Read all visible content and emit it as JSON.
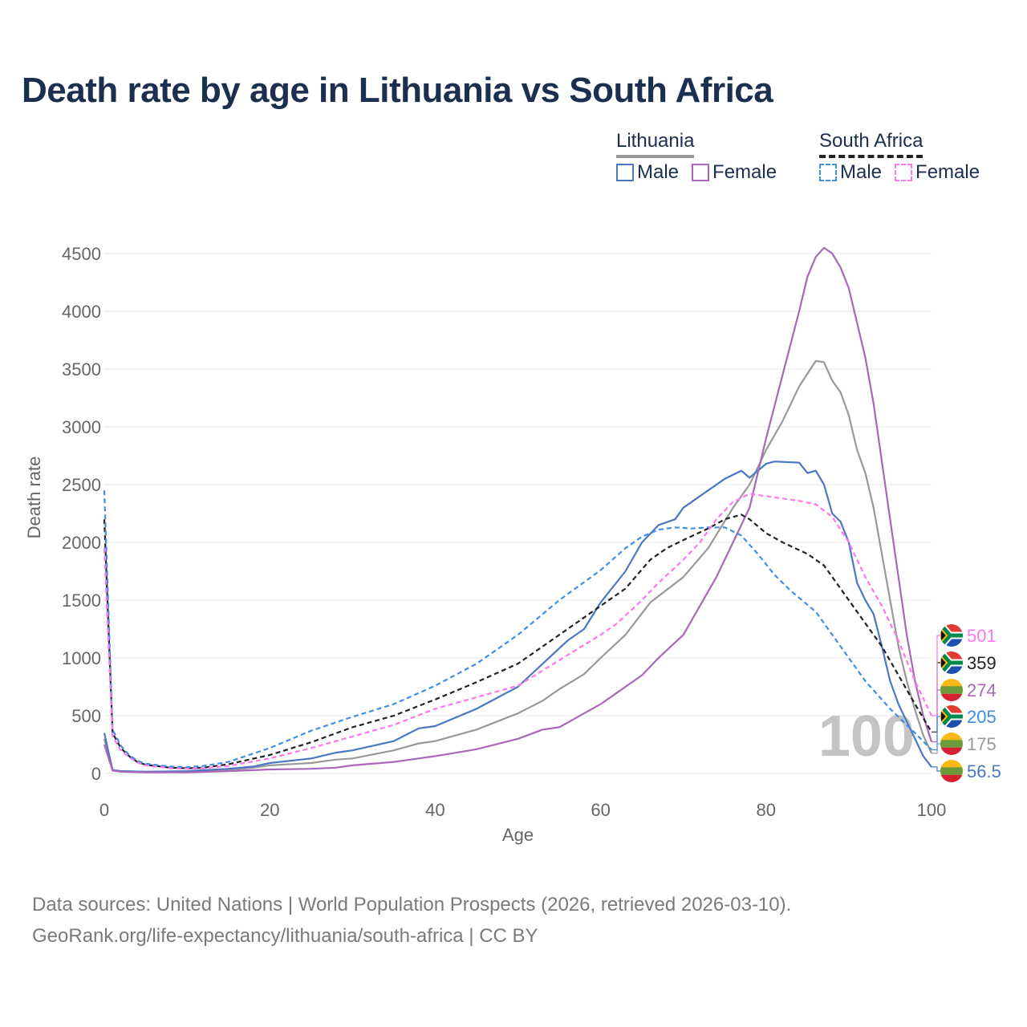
{
  "title": "Death rate by age in Lithuania vs South Africa",
  "legend": {
    "lithuania_label": "Lithuania",
    "south_africa_label": "South Africa",
    "male_label": "Male",
    "female_label": "Female"
  },
  "colors": {
    "lt_male": "#4a78c2",
    "lt_female": "#aa66bb",
    "lt_total": "#999999",
    "za_male": "#3d8fe8",
    "za_female": "#ff77ee",
    "za_total": "#222222",
    "grid": "#e6e6e6",
    "watermark": "#c4c4c4"
  },
  "footer": {
    "line1": "Data sources: United Nations | World Population Prospects (2026, retrieved 2026-03-10).",
    "line2": "GeoRank.org/life-expectancy/lithuania/south-africa | CC BY"
  },
  "chart_data": {
    "type": "line",
    "title": "Death rate by age in Lithuania vs South Africa",
    "xlabel": "Age",
    "ylabel": "Death rate",
    "xlim": [
      0,
      100
    ],
    "ylim": [
      0,
      4500
    ],
    "xticks": [
      "0",
      "20",
      "40",
      "60",
      "80",
      "100"
    ],
    "yticks": [
      "0",
      "500",
      "1000",
      "1500",
      "2000",
      "2500",
      "3000",
      "3500",
      "4000",
      "4500"
    ],
    "watermark": "100",
    "series": [
      {
        "id": "lt_total",
        "name": "Lithuania Total",
        "country": "Lithuania",
        "dashed": false,
        "end_label": "175",
        "points": [
          [
            0,
            300
          ],
          [
            1,
            30
          ],
          [
            2,
            20
          ],
          [
            5,
            15
          ],
          [
            10,
            15
          ],
          [
            15,
            30
          ],
          [
            18,
            50
          ],
          [
            20,
            70
          ],
          [
            25,
            90
          ],
          [
            28,
            120
          ],
          [
            30,
            130
          ],
          [
            35,
            200
          ],
          [
            38,
            260
          ],
          [
            40,
            280
          ],
          [
            45,
            380
          ],
          [
            50,
            520
          ],
          [
            53,
            630
          ],
          [
            55,
            730
          ],
          [
            58,
            860
          ],
          [
            60,
            1000
          ],
          [
            63,
            1200
          ],
          [
            66,
            1480
          ],
          [
            70,
            1700
          ],
          [
            73,
            1950
          ],
          [
            76,
            2300
          ],
          [
            78,
            2500
          ],
          [
            80,
            2800
          ],
          [
            82,
            3050
          ],
          [
            84,
            3350
          ],
          [
            86,
            3570
          ],
          [
            87,
            3560
          ],
          [
            88,
            3400
          ],
          [
            89,
            3300
          ],
          [
            90,
            3100
          ],
          [
            91,
            2800
          ],
          [
            92,
            2600
          ],
          [
            93,
            2300
          ],
          [
            94,
            1900
          ],
          [
            95,
            1500
          ],
          [
            96,
            1100
          ],
          [
            97,
            800
          ],
          [
            98,
            550
          ],
          [
            99,
            330
          ],
          [
            100,
            175
          ]
        ]
      },
      {
        "id": "lt_male",
        "name": "Lithuania Male",
        "country": "Lithuania",
        "dashed": false,
        "end_label": "56.5",
        "points": [
          [
            0,
            350
          ],
          [
            1,
            30
          ],
          [
            2,
            20
          ],
          [
            5,
            15
          ],
          [
            10,
            20
          ],
          [
            15,
            40
          ],
          [
            18,
            60
          ],
          [
            20,
            90
          ],
          [
            25,
            130
          ],
          [
            28,
            180
          ],
          [
            30,
            200
          ],
          [
            35,
            280
          ],
          [
            38,
            390
          ],
          [
            40,
            410
          ],
          [
            45,
            560
          ],
          [
            50,
            750
          ],
          [
            53,
            950
          ],
          [
            56,
            1150
          ],
          [
            58,
            1250
          ],
          [
            60,
            1480
          ],
          [
            63,
            1750
          ],
          [
            65,
            2000
          ],
          [
            67,
            2150
          ],
          [
            69,
            2200
          ],
          [
            70,
            2300
          ],
          [
            73,
            2450
          ],
          [
            75,
            2550
          ],
          [
            77,
            2620
          ],
          [
            78,
            2560
          ],
          [
            80,
            2680
          ],
          [
            81,
            2700
          ],
          [
            84,
            2690
          ],
          [
            85,
            2600
          ],
          [
            86,
            2620
          ],
          [
            87,
            2500
          ],
          [
            88,
            2250
          ],
          [
            89,
            2180
          ],
          [
            90,
            2000
          ],
          [
            91,
            1650
          ],
          [
            92,
            1500
          ],
          [
            93,
            1380
          ],
          [
            94,
            1100
          ],
          [
            95,
            800
          ],
          [
            96,
            600
          ],
          [
            97,
            450
          ],
          [
            98,
            300
          ],
          [
            99,
            150
          ],
          [
            100,
            56.5
          ]
        ]
      },
      {
        "id": "lt_female",
        "name": "Lithuania Female",
        "country": "Lithuania",
        "dashed": false,
        "end_label": "274",
        "points": [
          [
            0,
            250
          ],
          [
            1,
            25
          ],
          [
            2,
            15
          ],
          [
            5,
            10
          ],
          [
            10,
            10
          ],
          [
            15,
            20
          ],
          [
            20,
            35
          ],
          [
            25,
            40
          ],
          [
            28,
            50
          ],
          [
            30,
            70
          ],
          [
            35,
            100
          ],
          [
            38,
            130
          ],
          [
            40,
            150
          ],
          [
            45,
            210
          ],
          [
            50,
            300
          ],
          [
            53,
            380
          ],
          [
            55,
            400
          ],
          [
            58,
            520
          ],
          [
            60,
            600
          ],
          [
            63,
            750
          ],
          [
            65,
            850
          ],
          [
            67,
            1000
          ],
          [
            70,
            1200
          ],
          [
            72,
            1450
          ],
          [
            74,
            1700
          ],
          [
            76,
            2000
          ],
          [
            78,
            2300
          ],
          [
            80,
            2900
          ],
          [
            82,
            3450
          ],
          [
            84,
            4000
          ],
          [
            85,
            4300
          ],
          [
            86,
            4470
          ],
          [
            87,
            4550
          ],
          [
            88,
            4500
          ],
          [
            89,
            4380
          ],
          [
            90,
            4200
          ],
          [
            91,
            3900
          ],
          [
            92,
            3600
          ],
          [
            93,
            3200
          ],
          [
            94,
            2700
          ],
          [
            95,
            2200
          ],
          [
            96,
            1700
          ],
          [
            97,
            1200
          ],
          [
            98,
            800
          ],
          [
            99,
            500
          ],
          [
            100,
            274
          ]
        ]
      },
      {
        "id": "za_total",
        "name": "South Africa Total",
        "country": "South Africa",
        "dashed": true,
        "end_label": "359",
        "points": [
          [
            0,
            2200
          ],
          [
            1,
            350
          ],
          [
            2,
            220
          ],
          [
            3,
            150
          ],
          [
            4,
            100
          ],
          [
            5,
            75
          ],
          [
            8,
            50
          ],
          [
            10,
            45
          ],
          [
            12,
            50
          ],
          [
            15,
            80
          ],
          [
            20,
            160
          ],
          [
            25,
            270
          ],
          [
            30,
            400
          ],
          [
            35,
            500
          ],
          [
            40,
            640
          ],
          [
            45,
            790
          ],
          [
            50,
            950
          ],
          [
            55,
            1200
          ],
          [
            60,
            1450
          ],
          [
            63,
            1600
          ],
          [
            66,
            1850
          ],
          [
            68,
            1950
          ],
          [
            70,
            2020
          ],
          [
            73,
            2120
          ],
          [
            75,
            2200
          ],
          [
            77,
            2240
          ],
          [
            78,
            2200
          ],
          [
            80,
            2080
          ],
          [
            82,
            2000
          ],
          [
            85,
            1900
          ],
          [
            87,
            1800
          ],
          [
            88,
            1700
          ],
          [
            90,
            1500
          ],
          [
            92,
            1300
          ],
          [
            94,
            1100
          ],
          [
            96,
            850
          ],
          [
            98,
            600
          ],
          [
            100,
            359
          ]
        ]
      },
      {
        "id": "za_male",
        "name": "South Africa Male",
        "country": "South Africa",
        "dashed": true,
        "end_label": "205",
        "points": [
          [
            0,
            2450
          ],
          [
            1,
            380
          ],
          [
            2,
            240
          ],
          [
            3,
            160
          ],
          [
            4,
            110
          ],
          [
            5,
            85
          ],
          [
            8,
            60
          ],
          [
            10,
            55
          ],
          [
            12,
            65
          ],
          [
            15,
            100
          ],
          [
            20,
            220
          ],
          [
            25,
            370
          ],
          [
            30,
            490
          ],
          [
            35,
            600
          ],
          [
            40,
            760
          ],
          [
            45,
            950
          ],
          [
            50,
            1200
          ],
          [
            55,
            1500
          ],
          [
            60,
            1760
          ],
          [
            63,
            1950
          ],
          [
            65,
            2050
          ],
          [
            67,
            2110
          ],
          [
            69,
            2130
          ],
          [
            71,
            2120
          ],
          [
            73,
            2130
          ],
          [
            75,
            2130
          ],
          [
            77,
            2060
          ],
          [
            79,
            1900
          ],
          [
            81,
            1720
          ],
          [
            83,
            1580
          ],
          [
            86,
            1400
          ],
          [
            88,
            1200
          ],
          [
            90,
            1000
          ],
          [
            92,
            800
          ],
          [
            95,
            560
          ],
          [
            98,
            350
          ],
          [
            100,
            205
          ]
        ]
      },
      {
        "id": "za_female",
        "name": "South Africa Female",
        "country": "South Africa",
        "dashed": true,
        "end_label": "501",
        "points": [
          [
            0,
            1950
          ],
          [
            1,
            320
          ],
          [
            2,
            200
          ],
          [
            3,
            140
          ],
          [
            4,
            95
          ],
          [
            5,
            70
          ],
          [
            8,
            45
          ],
          [
            10,
            40
          ],
          [
            12,
            45
          ],
          [
            15,
            65
          ],
          [
            20,
            130
          ],
          [
            25,
            220
          ],
          [
            30,
            320
          ],
          [
            35,
            420
          ],
          [
            40,
            560
          ],
          [
            45,
            660
          ],
          [
            50,
            760
          ],
          [
            55,
            980
          ],
          [
            60,
            1200
          ],
          [
            62,
            1300
          ],
          [
            65,
            1500
          ],
          [
            67,
            1650
          ],
          [
            70,
            1850
          ],
          [
            72,
            2000
          ],
          [
            74,
            2200
          ],
          [
            76,
            2350
          ],
          [
            78,
            2420
          ],
          [
            80,
            2400
          ],
          [
            82,
            2380
          ],
          [
            84,
            2360
          ],
          [
            86,
            2330
          ],
          [
            88,
            2220
          ],
          [
            90,
            2000
          ],
          [
            92,
            1700
          ],
          [
            94,
            1450
          ],
          [
            96,
            1150
          ],
          [
            98,
            800
          ],
          [
            100,
            501
          ]
        ]
      }
    ]
  }
}
